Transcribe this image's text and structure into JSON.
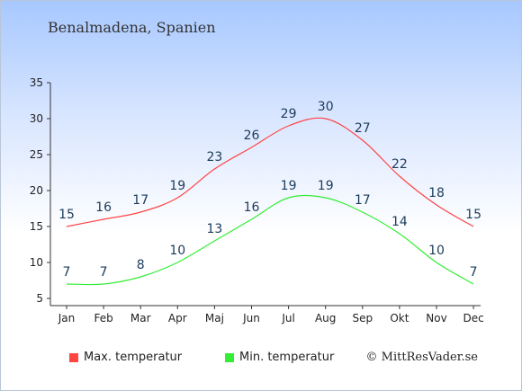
{
  "chart_data": {
    "type": "line",
    "title": "Benalmadena, Spanien",
    "categories": [
      "Jan",
      "Feb",
      "Mar",
      "Apr",
      "Maj",
      "Jun",
      "Jul",
      "Aug",
      "Sep",
      "Okt",
      "Nov",
      "Dec"
    ],
    "series": [
      {
        "name": "Max. temperatur",
        "color": "#ff4444",
        "values": [
          15,
          16,
          17,
          19,
          23,
          26,
          29,
          30,
          27,
          22,
          18,
          15
        ]
      },
      {
        "name": "Min. temperatur",
        "color": "#33ee33",
        "values": [
          7,
          7,
          8,
          10,
          13,
          16,
          19,
          19,
          17,
          14,
          10,
          7
        ]
      }
    ],
    "ylim": [
      5,
      35
    ],
    "yticks": [
      5,
      10,
      15,
      20,
      25,
      30,
      35
    ],
    "grid": false,
    "legend_position": "bottom"
  },
  "copyright": "© MittResVader.se"
}
